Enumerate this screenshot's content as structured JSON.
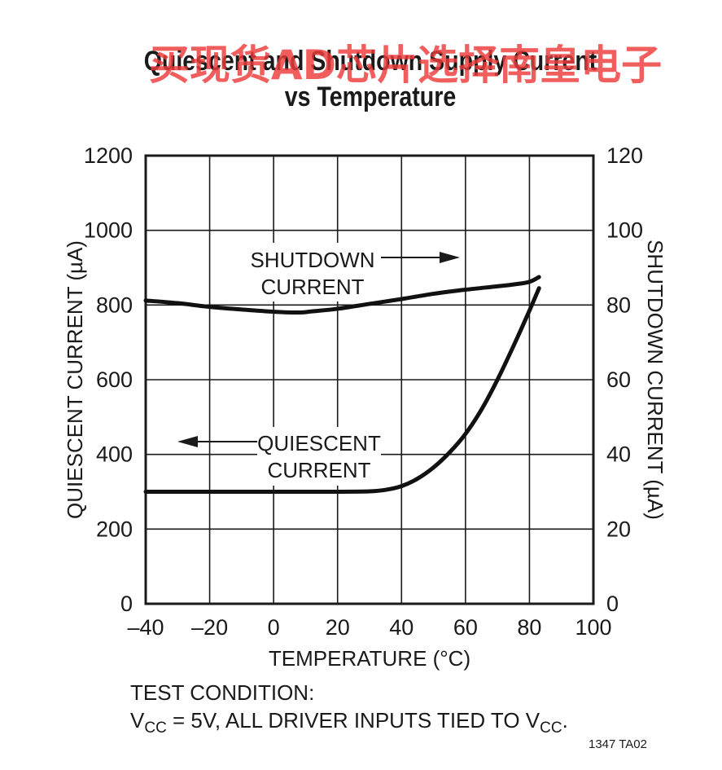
{
  "chart_data": {
    "type": "line",
    "title_line1": "Quiescent and Shutdown Supply Current",
    "title_line2": "vs Temperature",
    "watermark": "买现货AD芯片选择南皇电子",
    "xlabel": "TEMPERATURE (°C)",
    "ylabel_left": "QUIESCENT CURRENT (µA)",
    "ylabel_right": "SHUTDOWN CURRENT (µA)",
    "xlim": [
      -40,
      100
    ],
    "ylim_left": [
      0,
      1200
    ],
    "ylim_right": [
      0,
      120
    ],
    "x_ticks": [
      "–40",
      "–20",
      "0",
      "20",
      "40",
      "60",
      "80",
      "100"
    ],
    "y_ticks_left": [
      "0",
      "200",
      "400",
      "600",
      "800",
      "1000",
      "1200"
    ],
    "y_ticks_right": [
      "0",
      "20",
      "40",
      "60",
      "80",
      "100",
      "120"
    ],
    "grid": true,
    "series": [
      {
        "axis": "right",
        "x": [
          -40,
          -30,
          -20,
          -10,
          0,
          8,
          12,
          20,
          30,
          40,
          50,
          60,
          70,
          75,
          80,
          83
        ],
        "y": [
          81.2,
          80.5,
          79.5,
          78.8,
          78.2,
          78.0,
          78.3,
          79.0,
          80.3,
          81.6,
          83.0,
          84.1,
          85.0,
          85.5,
          86.2,
          87.5
        ]
      },
      {
        "axis": "left",
        "x": [
          -40,
          -20,
          0,
          20,
          30,
          35,
          40,
          45,
          50,
          55,
          60,
          65,
          70,
          75,
          80,
          83
        ],
        "y": [
          300,
          300,
          300,
          300,
          301,
          305,
          315,
          335,
          365,
          405,
          455,
          520,
          600,
          690,
          785,
          845
        ]
      }
    ],
    "annotations": {
      "shutdown_line1": "SHUTDOWN",
      "shutdown_line2": "CURRENT",
      "quiescent_line1": "QUIESCENT",
      "quiescent_line2": "CURRENT"
    }
  },
  "notes": {
    "test_condition": "TEST CONDITION:",
    "vcc_v": "V",
    "vcc_sub": "CC",
    "vcc_middle": " = 5V, ALL DRIVER INPUTS TIED TO V",
    "vcc_sub2": "CC",
    "vcc_end": "."
  },
  "figure_code": "1347 TA02"
}
